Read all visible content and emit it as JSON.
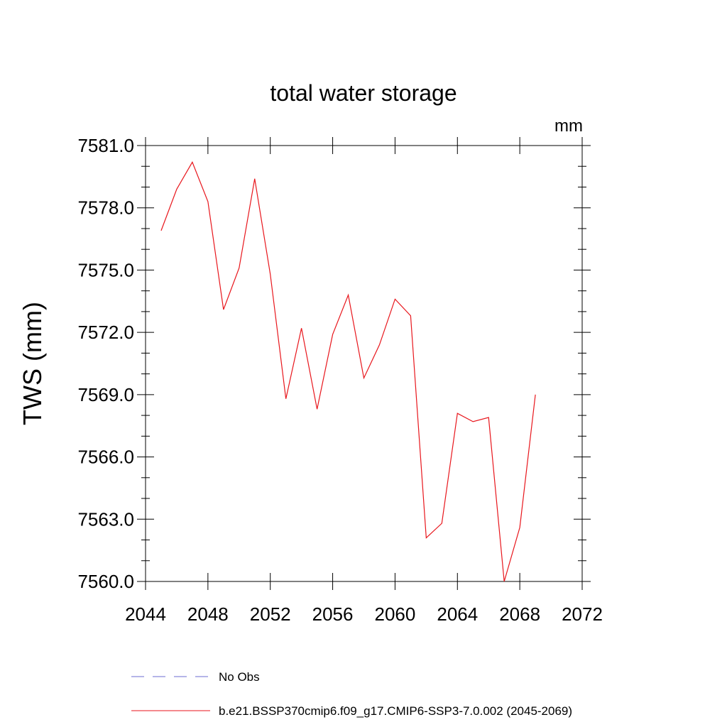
{
  "chart_data": {
    "type": "line",
    "title": "total water storage",
    "units_label": "mm",
    "ylabel": "TWS  (mm)",
    "xlabel": "",
    "xlim": [
      2044,
      2072
    ],
    "ylim": [
      7560.0,
      7581.0
    ],
    "x_ticks": [
      "2044",
      "2048",
      "2052",
      "2056",
      "2060",
      "2064",
      "2068",
      "2072"
    ],
    "y_ticks": [
      "7560.0",
      "7563.0",
      "7566.0",
      "7569.0",
      "7572.0",
      "7575.0",
      "7578.0",
      "7581.0"
    ],
    "grid": false,
    "legend_position": "bottom",
    "series": [
      {
        "name": "b.e21.BSSP370cmip6.f09_g17.CMIP6-SSP3-7.0.002 (2045-2069)",
        "color": "#e8161c",
        "style": "solid",
        "x": [
          2045,
          2046,
          2047,
          2048,
          2049,
          2050,
          2051,
          2052,
          2053,
          2054,
          2055,
          2056,
          2057,
          2058,
          2059,
          2060,
          2061,
          2062,
          2063,
          2064,
          2065,
          2066,
          2067,
          2068,
          2069
        ],
        "values": [
          7576.9,
          7578.9,
          7580.2,
          7578.3,
          7573.1,
          7575.1,
          7579.4,
          7574.8,
          7568.8,
          7572.2,
          7568.3,
          7571.9,
          7573.8,
          7569.8,
          7571.4,
          7573.6,
          7572.8,
          7562.1,
          7562.8,
          7568.1,
          7567.7,
          7567.9,
          7560.0,
          7562.6,
          7569.0
        ]
      }
    ],
    "legend": [
      {
        "label": "No Obs",
        "color": "#6b6bd1",
        "style": "dashed"
      },
      {
        "label": "b.e21.BSSP370cmip6.f09_g17.CMIP6-SSP3-7.0.002 (2045-2069)",
        "color": "#e8161c",
        "style": "solid"
      }
    ]
  }
}
